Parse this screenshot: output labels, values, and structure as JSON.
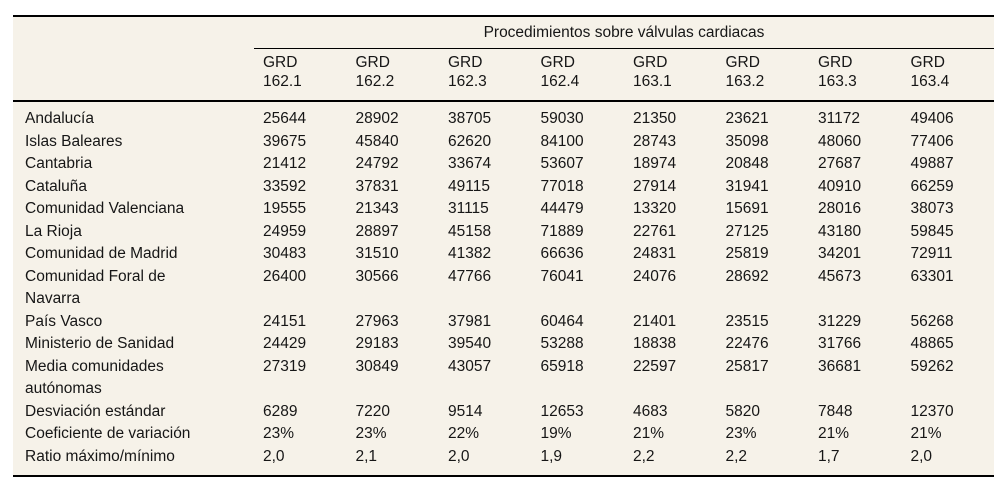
{
  "colors": {
    "page_background": "#ffffff",
    "table_background": "#f6f2e9",
    "text": "#161616",
    "border": "#000000"
  },
  "table": {
    "title": "Procedimientos sobre válvulas cardiacas",
    "column_group_label": "GRD",
    "column_codes": [
      "162.1",
      "162.2",
      "162.3",
      "162.4",
      "163.1",
      "163.2",
      "163.3",
      "163.4"
    ],
    "rows": [
      {
        "label": "Andalucía",
        "values": [
          "25644",
          "28902",
          "38705",
          "59030",
          "21350",
          "23621",
          "31172",
          "49406"
        ]
      },
      {
        "label": "Islas Baleares",
        "values": [
          "39675",
          "45840",
          "62620",
          "84100",
          "28743",
          "35098",
          "48060",
          "77406"
        ]
      },
      {
        "label": "Cantabria",
        "values": [
          "21412",
          "24792",
          "33674",
          "53607",
          "18974",
          "20848",
          "27687",
          "49887"
        ]
      },
      {
        "label": "Cataluña",
        "values": [
          "33592",
          "37831",
          "49115",
          "77018",
          "27914",
          "31941",
          "40910",
          "66259"
        ]
      },
      {
        "label": "Comunidad Valenciana",
        "values": [
          "19555",
          "21343",
          "31115",
          "44479",
          "13320",
          "15691",
          "28016",
          "38073"
        ]
      },
      {
        "label": "La Rioja",
        "values": [
          "24959",
          "28897",
          "45158",
          "71889",
          "22761",
          "27125",
          "43180",
          "59845"
        ]
      },
      {
        "label": "Comunidad de Madrid",
        "values": [
          "30483",
          "31510",
          "41382",
          "66636",
          "24831",
          "25819",
          "34201",
          "72911"
        ]
      },
      {
        "label": "Comunidad Foral de\nNavarra",
        "values": [
          "26400",
          "30566",
          "47766",
          "76041",
          "24076",
          "28692",
          "45673",
          "63301"
        ]
      },
      {
        "label": "País Vasco",
        "values": [
          "24151",
          "27963",
          "37981",
          "60464",
          "21401",
          "23515",
          "31229",
          "56268"
        ]
      },
      {
        "label": "Ministerio de Sanidad",
        "values": [
          "24429",
          "29183",
          "39540",
          "53288",
          "18838",
          "22476",
          "31766",
          "48865"
        ]
      },
      {
        "label": "Media comunidades\nautónomas",
        "values": [
          "27319",
          "30849",
          "43057",
          "65918",
          "22597",
          "25817",
          "36681",
          "59262"
        ]
      },
      {
        "label": "Desviación estándar",
        "values": [
          "6289",
          "7220",
          "9514",
          "12653",
          "4683",
          "5820",
          "7848",
          "12370"
        ]
      },
      {
        "label": "Coeficiente de variación",
        "values": [
          "23%",
          "23%",
          "22%",
          "19%",
          "21%",
          "23%",
          "21%",
          "21%"
        ]
      },
      {
        "label": "Ratio máximo/mínimo",
        "values": [
          "2,0",
          "2,1",
          "2,0",
          "1,9",
          "2,2",
          "2,2",
          "1,7",
          "2,0"
        ]
      }
    ]
  }
}
